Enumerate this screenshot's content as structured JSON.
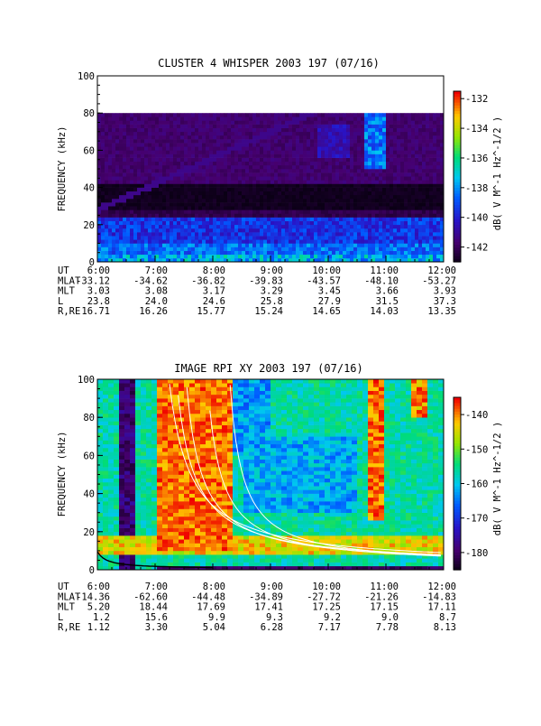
{
  "panels": [
    {
      "title": "CLUSTER 4 WHISPER 2003 197 (07/16)",
      "ylabel": "FREQUENCY (kHz)",
      "yticks": [
        "0",
        "20",
        "40",
        "60",
        "80",
        "100"
      ],
      "colorbar_label": "dB( V M^-1 Hz^-1/2 )",
      "colorbar_ticks": [
        "-132",
        "-134",
        "-136",
        "-138",
        "-140",
        "-142"
      ],
      "ephemeris_labels": [
        "UT",
        "MLAT",
        "MLT",
        "L",
        "R,RE"
      ],
      "ephemeris_rows": [
        [
          "6:00",
          "7:00",
          "8:00",
          "9:00",
          "10:00",
          "11:00",
          "12:00"
        ],
        [
          "-33.12",
          "-34.62",
          "-36.82",
          "-39.83",
          "-43.57",
          "-48.10",
          "-53.27"
        ],
        [
          "3.03",
          "3.08",
          "3.17",
          "3.29",
          "3.45",
          "3.66",
          "3.93"
        ],
        [
          "23.8",
          "24.0",
          "24.6",
          "25.8",
          "27.9",
          "31.5",
          "37.3"
        ],
        [
          "16.71",
          "16.26",
          "15.77",
          "15.24",
          "14.65",
          "14.03",
          "13.35"
        ]
      ]
    },
    {
      "title": "IMAGE RPI XY 2003 197 (07/16)",
      "ylabel": "FREQUENCY (kHz)",
      "yticks": [
        "0",
        "20",
        "40",
        "60",
        "80",
        "100"
      ],
      "colorbar_label": "dB( V M^-1 Hz^-1/2 )",
      "colorbar_ticks": [
        "-140",
        "-150",
        "-160",
        "-170",
        "-180"
      ],
      "ephemeris_labels": [
        "UT",
        "MLAT",
        "MLT",
        "L",
        "R,RE"
      ],
      "ephemeris_rows": [
        [
          "6:00",
          "7:00",
          "8:00",
          "9:00",
          "10:00",
          "11:00",
          "12:00"
        ],
        [
          "-14.36",
          "-62.60",
          "-44.48",
          "-34.89",
          "-27.72",
          "-21.26",
          "-14.83"
        ],
        [
          "5.20",
          "18.44",
          "17.69",
          "17.41",
          "17.25",
          "17.15",
          "17.11"
        ],
        [
          "1.2",
          "15.6",
          "9.9",
          "9.3",
          "9.2",
          "9.0",
          "8.7"
        ],
        [
          "1.12",
          "3.30",
          "5.04",
          "6.28",
          "7.17",
          "7.78",
          "8.13"
        ]
      ]
    }
  ],
  "chart_data": [
    {
      "type": "heatmap",
      "title": "CLUSTER 4 WHISPER 2003 197 (07/16)",
      "xlabel": "UT",
      "ylabel": "FREQUENCY (kHz)",
      "x": [
        "6:00",
        "7:00",
        "8:00",
        "9:00",
        "10:00",
        "11:00",
        "12:00"
      ],
      "xlim": [
        6,
        12
      ],
      "ylim": [
        0,
        100
      ],
      "data_max_frequency_khz": 80,
      "colorbar": {
        "label": "dB( V M^-1 Hz^-1/2 )",
        "range": [
          -143,
          -132
        ],
        "colormap": "rainbow"
      },
      "features": [
        {
          "name": "low-frequency emission band",
          "frequency_khz": [
            2,
            25
          ],
          "level_db": -139
        },
        {
          "name": "intense emission near 11:00",
          "time_ut": 10.8,
          "frequency_khz": [
            55,
            80
          ],
          "level_db": -138
        },
        {
          "name": "background",
          "level_db": -143
        }
      ]
    },
    {
      "type": "heatmap",
      "title": "IMAGE RPI XY 2003 197 (07/16)",
      "xlabel": "UT",
      "ylabel": "FREQUENCY (kHz)",
      "x": [
        "6:00",
        "7:00",
        "8:00",
        "9:00",
        "10:00",
        "11:00",
        "12:00"
      ],
      "xlim": [
        6,
        12
      ],
      "ylim": [
        0,
        100
      ],
      "colorbar": {
        "label": "dB( V M^-1 Hz^-1/2 )",
        "range": [
          -185,
          -135
        ],
        "colormap": "rainbow"
      },
      "overlay_lines": "white curves decreasing from ~100 kHz near 7:00-8:30 to ~5-15 kHz at 12:00; black curve near 0-10 kHz from 6:00 to 8:00",
      "features": [
        {
          "name": "strong emission",
          "time_ut": [
            7.0,
            8.5
          ],
          "frequency_khz": [
            20,
            100
          ],
          "level_db": -142
        },
        {
          "name": "strong emission",
          "time_ut": [
            10.7,
            11.0
          ],
          "frequency_khz": [
            30,
            100
          ],
          "level_db": -142
        },
        {
          "name": "dark stripe",
          "time_ut": [
            6.3,
            6.6
          ],
          "frequency_khz": [
            0,
            100
          ],
          "level_db": -182
        }
      ]
    }
  ]
}
